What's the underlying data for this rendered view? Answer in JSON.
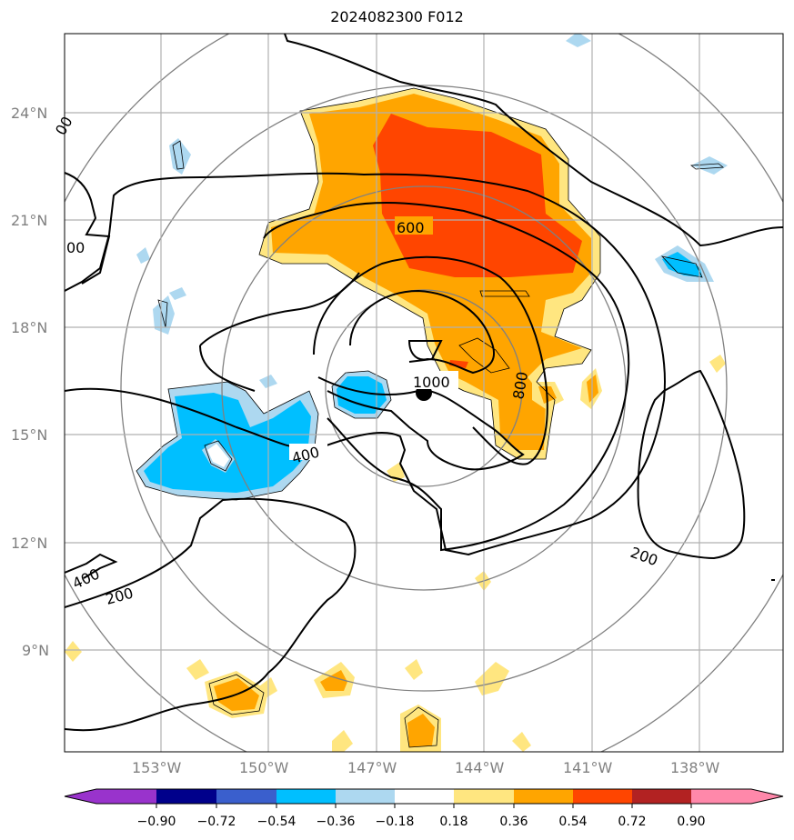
{
  "title": "2024082300 F012",
  "map": {
    "lat_labels": [
      "24°N",
      "21°N",
      "18°N",
      "15°N",
      "12°N",
      "9°N"
    ],
    "lon_labels": [
      "153°W",
      "150°W",
      "147°W",
      "144°W",
      "141°W",
      "138°W"
    ],
    "contour_labels": [
      "600",
      "1000",
      "800",
      "400",
      "200",
      "400",
      "200",
      "200",
      "00",
      "00"
    ],
    "storm_center_marker": "black-dot"
  },
  "colorbar": {
    "ticks": [
      "−0.90",
      "−0.72",
      "−0.54",
      "−0.36",
      "−0.18",
      "0.18",
      "0.36",
      "0.54",
      "0.72",
      "0.90"
    ],
    "colors": [
      "#9933cc",
      "#00008b",
      "#3a5fcd",
      "#00bfff",
      "#add8f0",
      "#ffffff",
      "#ffe680",
      "#ffa500",
      "#ff4500",
      "#b22222",
      "#ff88aa"
    ]
  }
}
